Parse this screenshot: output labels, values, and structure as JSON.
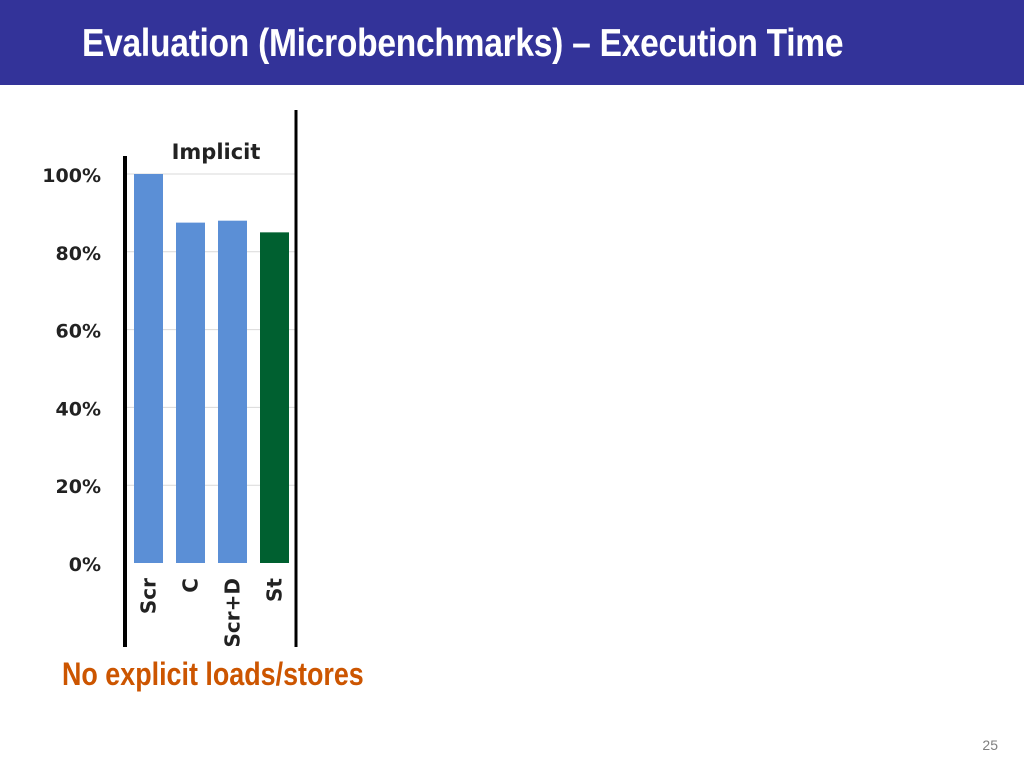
{
  "slide": {
    "title": "Evaluation (Microbenchmarks) – Execution Time",
    "note": "No explicit loads/stores",
    "page_number": "25"
  },
  "colors": {
    "header": "#333399",
    "bar_blue": "#5B8FD6",
    "bar_green": "#006030",
    "note": "#CC5500"
  },
  "chart_data": {
    "type": "bar",
    "title": "Implicit",
    "categories": [
      "Scr",
      "C",
      "Scr+D",
      "St"
    ],
    "series": [
      {
        "values": [
          100,
          87.5,
          88,
          85
        ]
      }
    ],
    "bar_colors": [
      "#5B8FD6",
      "#5B8FD6",
      "#5B8FD6",
      "#006030"
    ],
    "ylim": [
      0,
      100
    ],
    "yticks": [
      0,
      20,
      40,
      60,
      80,
      100
    ],
    "ytick_labels": [
      "0%",
      "20%",
      "40%",
      "60%",
      "80%",
      "100%"
    ],
    "grid": true,
    "xlabel": "",
    "ylabel": ""
  }
}
